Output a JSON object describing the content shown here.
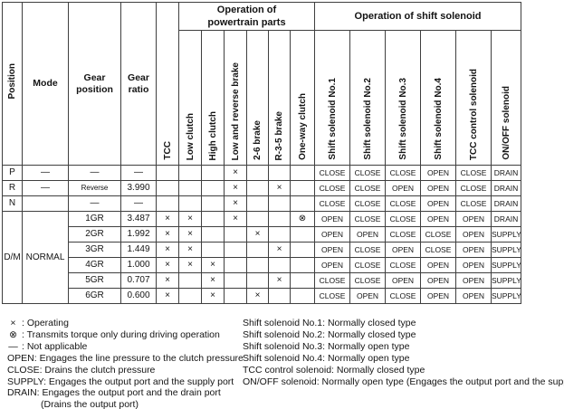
{
  "table": {
    "headers": {
      "position": "Position",
      "mode": "Mode",
      "gear_position": "Gear position",
      "gear_ratio": "Gear ratio",
      "tcc": "TCC"
    },
    "groups": [
      {
        "label": "Operation of\npowertrain parts",
        "columns": [
          "Low clutch",
          "High clutch",
          "Low and reverse brake",
          "2-6 brake",
          "R-3-5 brake",
          "One-way clutch"
        ]
      },
      {
        "label": "Operation of shift solenoid",
        "columns": [
          "Shift solenoid No.1",
          "Shift solenoid No.2",
          "Shift solenoid No.3",
          "Shift solenoid No.4",
          "TCC control solenoid",
          "ON/OFF solenoid"
        ]
      }
    ],
    "dm_row_index": 3,
    "dm_group": {
      "position": "D/M",
      "mode": "NORMAL",
      "rowspan": 6
    },
    "rows": [
      {
        "position": "P",
        "mode": "—",
        "gear": "—",
        "ratio": "—",
        "ops": [
          "",
          "",
          "",
          "×",
          "",
          "",
          ""
        ],
        "solenoids": [
          "CLOSE",
          "CLOSE",
          "CLOSE",
          "OPEN",
          "CLOSE",
          "DRAIN"
        ]
      },
      {
        "position": "R",
        "mode": "—",
        "gear": "Reverse",
        "ratio": "3.990",
        "ops": [
          "",
          "",
          "",
          "×",
          "",
          "×",
          ""
        ],
        "solenoids": [
          "CLOSE",
          "CLOSE",
          "OPEN",
          "OPEN",
          "CLOSE",
          "DRAIN"
        ]
      },
      {
        "position": "N",
        "mode": "",
        "gear": "—",
        "ratio": "—",
        "ops": [
          "",
          "",
          "",
          "×",
          "",
          "",
          ""
        ],
        "solenoids": [
          "CLOSE",
          "CLOSE",
          "CLOSE",
          "OPEN",
          "CLOSE",
          "DRAIN"
        ]
      },
      {
        "gear": "1GR",
        "ratio": "3.487",
        "ops": [
          "×",
          "×",
          "",
          "×",
          "",
          "",
          "⊗"
        ],
        "solenoids": [
          "OPEN",
          "CLOSE",
          "CLOSE",
          "OPEN",
          "OPEN",
          "DRAIN"
        ]
      },
      {
        "gear": "2GR",
        "ratio": "1.992",
        "ops": [
          "×",
          "×",
          "",
          "",
          "×",
          "",
          ""
        ],
        "solenoids": [
          "OPEN",
          "OPEN",
          "CLOSE",
          "CLOSE",
          "OPEN",
          "SUPPLY"
        ]
      },
      {
        "gear": "3GR",
        "ratio": "1.449",
        "ops": [
          "×",
          "×",
          "",
          "",
          "",
          "×",
          ""
        ],
        "solenoids": [
          "OPEN",
          "CLOSE",
          "OPEN",
          "CLOSE",
          "OPEN",
          "SUPPLY"
        ]
      },
      {
        "gear": "4GR",
        "ratio": "1.000",
        "ops": [
          "×",
          "×",
          "×",
          "",
          "",
          "",
          ""
        ],
        "solenoids": [
          "OPEN",
          "CLOSE",
          "CLOSE",
          "OPEN",
          "OPEN",
          "SUPPLY"
        ]
      },
      {
        "gear": "5GR",
        "ratio": "0.707",
        "ops": [
          "×",
          "",
          "×",
          "",
          "",
          "×",
          ""
        ],
        "solenoids": [
          "CLOSE",
          "CLOSE",
          "OPEN",
          "OPEN",
          "OPEN",
          "SUPPLY"
        ]
      },
      {
        "gear": "6GR",
        "ratio": "0.600",
        "ops": [
          "×",
          "",
          "×",
          "",
          "×",
          "",
          ""
        ],
        "solenoids": [
          "CLOSE",
          "OPEN",
          "CLOSE",
          "OPEN",
          "OPEN",
          "SUPPLY"
        ]
      }
    ]
  },
  "notes": {
    "left": [
      {
        "symbol": "×",
        "text": ": Operating"
      },
      {
        "symbol": "⊗",
        "text": ": Transmits torque only during driving operation"
      },
      {
        "symbol": "—",
        "text": ": Not applicable"
      },
      {
        "text": "OPEN: Engages the line pressure to the clutch pressure"
      },
      {
        "text": "CLOSE: Drains the clutch pressure"
      },
      {
        "text": "SUPPLY: Engages the output port and the supply port"
      },
      {
        "text": "DRAIN: Engages the output port and the drain port"
      },
      {
        "text": "(Drains the output port)",
        "indent": true
      }
    ],
    "right": [
      {
        "text": "Shift solenoid No.1: Normally closed type"
      },
      {
        "text": "Shift solenoid No.2: Normally closed type"
      },
      {
        "text": "Shift solenoid No.3: Normally open type"
      },
      {
        "text": "Shift solenoid No.4: Normally open type"
      },
      {
        "text": "TCC control solenoid: Normally closed type"
      },
      {
        "text": "ON/OFF solenoid: Normally open type (Engages the output port and the supply port)"
      }
    ]
  }
}
